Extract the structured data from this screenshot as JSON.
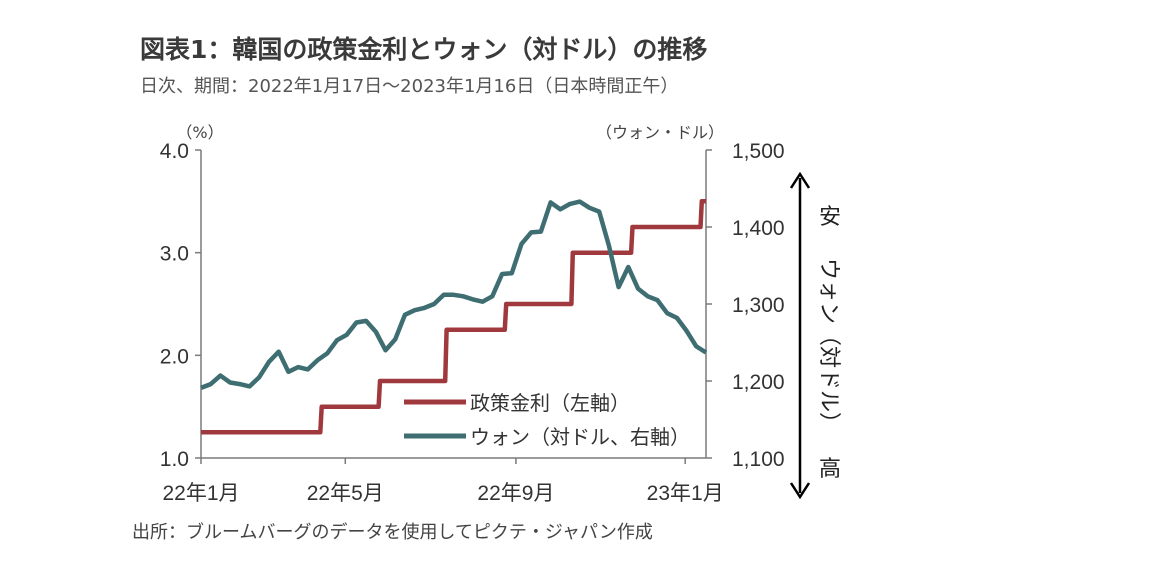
{
  "header": {
    "title": "図表1：韓国の政策金利とウォン（対ドル）の推移",
    "subtitle": "日次、期間：2022年1月17日～2023年1月16日（日本時間正午）"
  },
  "footer": {
    "source": "出所：ブルームバーグのデータを使用してピクテ・ジャパン作成"
  },
  "chart_data": {
    "type": "line",
    "left_unit": "（%）",
    "right_unit": "（ウォン・ドル）",
    "left_ylim": [
      1.0,
      4.0
    ],
    "right_ylim": [
      1100,
      1500
    ],
    "left_ticks": [
      "4.0",
      "3.0",
      "2.0",
      "1.0"
    ],
    "right_ticks": [
      "1,500",
      "1,400",
      "1,300",
      "1,200",
      "1,100"
    ],
    "x_ticks": [
      "22年1月",
      "22年5月",
      "22年9月",
      "23年1月"
    ],
    "x_range": [
      "2022-01-17",
      "2023-01-16"
    ],
    "legend_placement": "bottom-right",
    "side_annotation": {
      "top": "安",
      "middle": "ウォン（対ドル）",
      "bottom": "高"
    },
    "series": [
      {
        "name": "政策金利（左軸）",
        "color": "#a0393d",
        "axis": "left",
        "points": [
          [
            "2022-01-17",
            1.25
          ],
          [
            "2022-04-13",
            1.25
          ],
          [
            "2022-04-14",
            1.5
          ],
          [
            "2022-05-25",
            1.5
          ],
          [
            "2022-05-26",
            1.75
          ],
          [
            "2022-07-12",
            1.75
          ],
          [
            "2022-07-13",
            2.25
          ],
          [
            "2022-08-24",
            2.25
          ],
          [
            "2022-08-25",
            2.5
          ],
          [
            "2022-10-11",
            2.5
          ],
          [
            "2022-10-12",
            3.0
          ],
          [
            "2022-11-23",
            3.0
          ],
          [
            "2022-11-24",
            3.25
          ],
          [
            "2023-01-12",
            3.25
          ],
          [
            "2023-01-13",
            3.5
          ],
          [
            "2023-01-16",
            3.5
          ]
        ]
      },
      {
        "name": "ウォン（対ドル、右軸）",
        "color": "#3f6e72",
        "axis": "right",
        "points": [
          [
            "2022-01-17",
            1191
          ],
          [
            "2022-01-24",
            1196
          ],
          [
            "2022-01-31",
            1207
          ],
          [
            "2022-02-07",
            1198
          ],
          [
            "2022-02-14",
            1196
          ],
          [
            "2022-02-21",
            1193
          ],
          [
            "2022-02-28",
            1205
          ],
          [
            "2022-03-07",
            1225
          ],
          [
            "2022-03-14",
            1238
          ],
          [
            "2022-03-21",
            1212
          ],
          [
            "2022-03-28",
            1218
          ],
          [
            "2022-04-04",
            1215
          ],
          [
            "2022-04-11",
            1227
          ],
          [
            "2022-04-18",
            1236
          ],
          [
            "2022-04-25",
            1253
          ],
          [
            "2022-05-02",
            1260
          ],
          [
            "2022-05-09",
            1276
          ],
          [
            "2022-05-16",
            1278
          ],
          [
            "2022-05-23",
            1264
          ],
          [
            "2022-05-30",
            1240
          ],
          [
            "2022-06-06",
            1254
          ],
          [
            "2022-06-13",
            1286
          ],
          [
            "2022-06-20",
            1292
          ],
          [
            "2022-06-27",
            1295
          ],
          [
            "2022-07-04",
            1300
          ],
          [
            "2022-07-11",
            1312
          ],
          [
            "2022-07-18",
            1312
          ],
          [
            "2022-07-25",
            1310
          ],
          [
            "2022-08-01",
            1306
          ],
          [
            "2022-08-08",
            1303
          ],
          [
            "2022-08-15",
            1310
          ],
          [
            "2022-08-22",
            1339
          ],
          [
            "2022-08-29",
            1340
          ],
          [
            "2022-09-05",
            1378
          ],
          [
            "2022-09-12",
            1393
          ],
          [
            "2022-09-19",
            1394
          ],
          [
            "2022-09-26",
            1432
          ],
          [
            "2022-10-03",
            1423
          ],
          [
            "2022-10-10",
            1430
          ],
          [
            "2022-10-17",
            1433
          ],
          [
            "2022-10-24",
            1425
          ],
          [
            "2022-10-31",
            1420
          ],
          [
            "2022-11-07",
            1376
          ],
          [
            "2022-11-14",
            1322
          ],
          [
            "2022-11-21",
            1348
          ],
          [
            "2022-11-28",
            1320
          ],
          [
            "2022-12-05",
            1310
          ],
          [
            "2022-12-12",
            1305
          ],
          [
            "2022-12-19",
            1288
          ],
          [
            "2022-12-26",
            1282
          ],
          [
            "2023-01-02",
            1265
          ],
          [
            "2023-01-09",
            1245
          ],
          [
            "2023-01-16",
            1237
          ]
        ]
      }
    ]
  }
}
